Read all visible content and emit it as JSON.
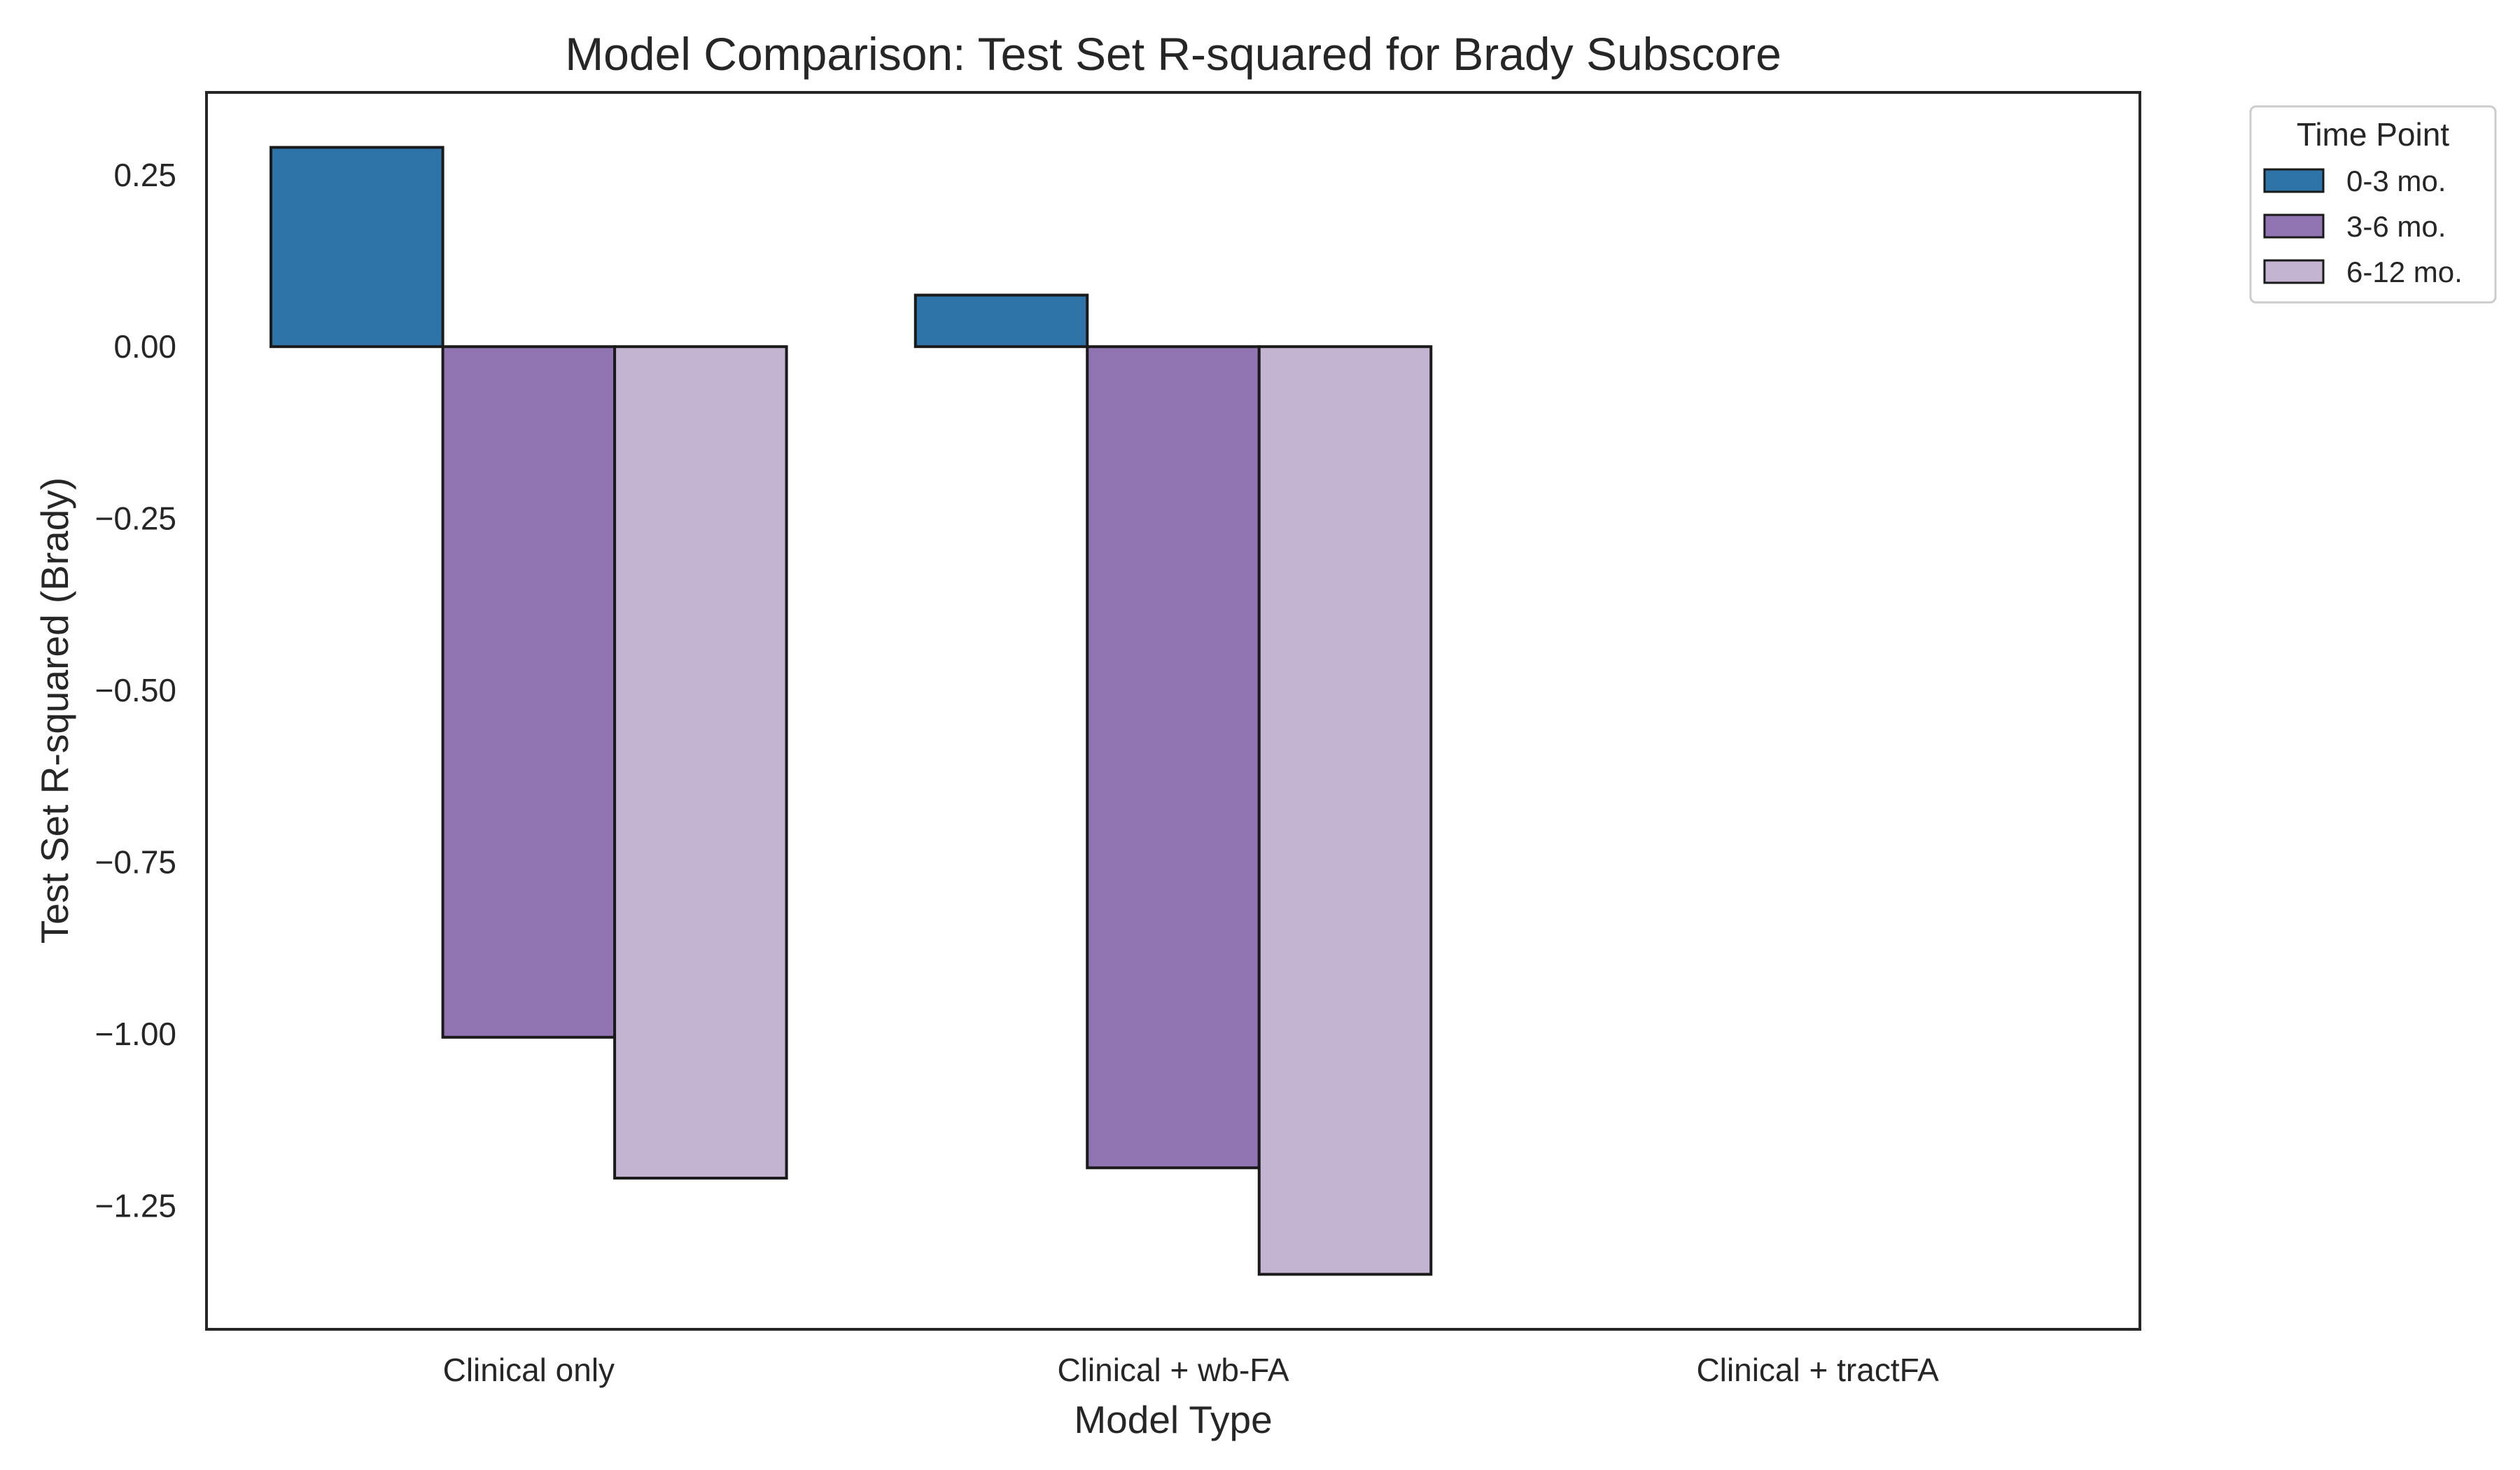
{
  "chart_data": {
    "type": "bar",
    "title": "Model Comparison: Test Set R-squared for Brady Subscore",
    "xlabel": "Model Type",
    "ylabel": "Test Set R-squared (Brady)",
    "categories": [
      "Clinical only",
      "Clinical + wb-FA",
      "Clinical + tractFA"
    ],
    "series": [
      {
        "name": "0-3 mo.",
        "color": "#2f74a8",
        "values": [
          0.29,
          0.075,
          null
        ]
      },
      {
        "name": "3-6 mo.",
        "color": "#9174b2",
        "values": [
          -1.005,
          -1.195,
          null
        ]
      },
      {
        "name": "6-12 mo.",
        "color": "#c3b5d1",
        "values": [
          -1.21,
          -1.35,
          null
        ]
      }
    ],
    "ylim": [
      -1.43,
      0.37
    ],
    "yticks": [
      0.25,
      0.0,
      -0.25,
      -0.5,
      -0.75,
      -1.0,
      -1.25
    ],
    "ytick_labels": [
      "0.25",
      "0.00",
      "−0.25",
      "−0.50",
      "−0.75",
      "−1.00",
      "−1.25"
    ],
    "grid": false,
    "legend": {
      "title": "Time Point",
      "placement": "outside-upper-right"
    }
  }
}
